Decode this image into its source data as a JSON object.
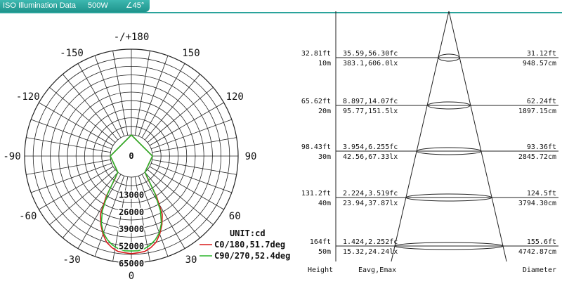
{
  "header": {
    "title": "ISO Illumination Data",
    "power": "500W",
    "angle": "∠45°"
  },
  "chart_data": [
    {
      "type": "polar",
      "unit_label": "UNIT:cd",
      "angle_labels": [
        "-/+180",
        "150",
        "120",
        "90",
        "60",
        "30",
        "0",
        "-30",
        "-60",
        "-90",
        "-120",
        "-150"
      ],
      "center_label": "0",
      "radial_ticks": [
        "13000",
        "26000",
        "39000",
        "52000",
        "65000"
      ],
      "radial_values": [
        13000,
        26000,
        39000,
        52000,
        65000
      ],
      "series": [
        {
          "name": "C0/180,51.7deg",
          "color": "#d81b1b",
          "angles": [
            -180,
            -90,
            -40,
            -36,
            -32,
            -28,
            -24,
            -20,
            -16,
            -12,
            -8,
            -4,
            0,
            4,
            8,
            12,
            16,
            20,
            24,
            28,
            32,
            36,
            40,
            90,
            180
          ],
          "values": [
            0,
            0,
            0,
            5000,
            20000,
            34000,
            41000,
            47000,
            52000,
            55000,
            57000,
            57500,
            58000,
            57500,
            57000,
            55000,
            52000,
            47000,
            41000,
            34000,
            20000,
            5000,
            0,
            0,
            0
          ]
        },
        {
          "name": "C90/270,52.4deg",
          "color": "#2db52d",
          "angles": [
            -180,
            -90,
            -40,
            -36,
            -32,
            -28,
            -24,
            -20,
            -16,
            -12,
            -8,
            -4,
            0,
            4,
            8,
            12,
            16,
            20,
            24,
            28,
            32,
            36,
            40,
            90,
            180
          ],
          "values": [
            0,
            0,
            0,
            6000,
            18000,
            31000,
            40000,
            46000,
            50000,
            53000,
            55000,
            56000,
            56000,
            56000,
            55000,
            53000,
            50000,
            46000,
            40000,
            31000,
            18000,
            6000,
            0,
            0,
            0
          ]
        }
      ]
    },
    {
      "type": "table",
      "columns": [
        "Height",
        "Eavg,Emax",
        "Diameter"
      ],
      "rows": [
        {
          "h_ft": "32.81ft",
          "h_m": "10m",
          "e_fc": "35.59,56.30fc",
          "e_lx": "383.1,606.0lx",
          "d_ft": "31.12ft",
          "d_m": "948.57cm"
        },
        {
          "h_ft": "65.62ft",
          "h_m": "20m",
          "e_fc": "8.897,14.07fc",
          "e_lx": "95.77,151.5lx",
          "d_ft": "62.24ft",
          "d_m": "1897.15cm"
        },
        {
          "h_ft": "98.43ft",
          "h_m": "30m",
          "e_fc": "3.954,6.255fc",
          "e_lx": "42.56,67.33lx",
          "d_ft": "93.36ft",
          "d_m": "2845.72cm"
        },
        {
          "h_ft": "131.2ft",
          "h_m": "40m",
          "e_fc": "2.224,3.519fc",
          "e_lx": "23.94,37.87lx",
          "d_ft": "124.5ft",
          "d_m": "3794.30cm"
        },
        {
          "h_ft": "164ft",
          "h_m": "50m",
          "e_fc": "1.424,2.252fc",
          "e_lx": "15.32,24.24lx",
          "d_ft": "155.6ft",
          "d_m": "4742.87cm"
        }
      ]
    }
  ]
}
